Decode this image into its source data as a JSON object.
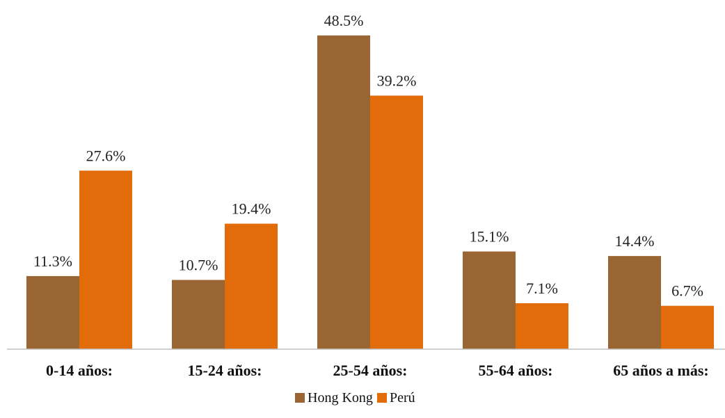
{
  "chart_data": {
    "type": "bar",
    "categories": [
      "0-14 años:",
      "15-24 años:",
      "25-54 años:",
      "55-64 años:",
      "65 años a más:"
    ],
    "series": [
      {
        "name": "Hong Kong",
        "color": "#996633",
        "values": [
          11.3,
          10.7,
          48.5,
          15.1,
          14.4
        ],
        "labels": [
          "11.3%",
          "10.7%",
          "48.5%",
          "15.1%",
          "14.4%"
        ]
      },
      {
        "name": "Perú",
        "color": "#E36C0A",
        "values": [
          27.6,
          19.4,
          39.2,
          7.1,
          6.7
        ],
        "labels": [
          "27.6%",
          "19.4%",
          "39.2%",
          "7.1%",
          "6.7%"
        ]
      }
    ],
    "title": "",
    "xlabel": "",
    "ylabel": "",
    "ylim": [
      0,
      48.5
    ],
    "grid": false,
    "legend_position": "bottom"
  }
}
